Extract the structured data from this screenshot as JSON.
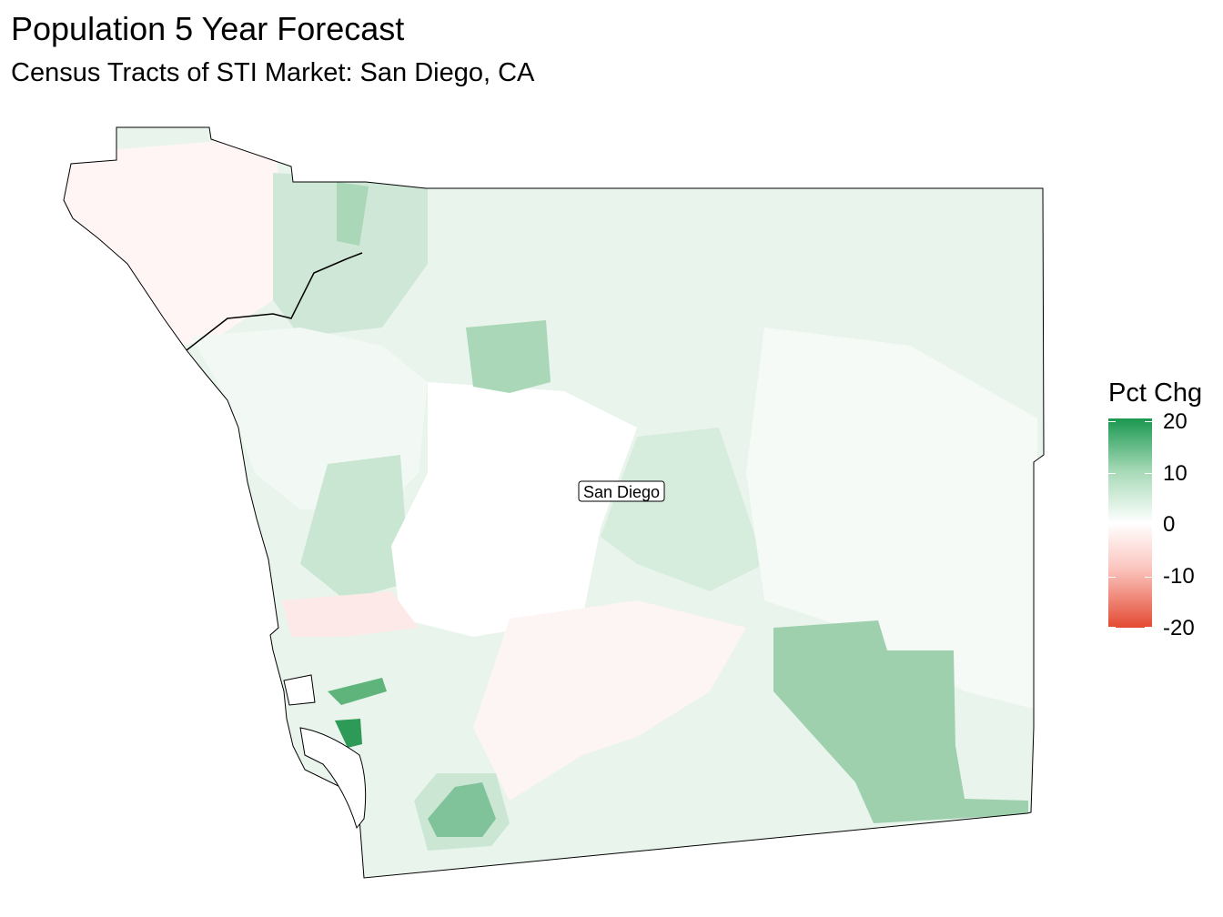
{
  "title": "Population 5 Year Forecast",
  "subtitle": "Census Tracts of STI Market: San Diego, CA",
  "map": {
    "city_label": "San Diego",
    "colors": {
      "max_growth": "#1a9850",
      "mid_growth": "#a6d9b6",
      "light_growth": "#e4f2e8",
      "neutral": "#ffffff",
      "decline": "#e34a33",
      "light_decline": "#fdecea"
    }
  },
  "legend": {
    "title": "Pct Chg",
    "ticks": [
      "20",
      "10",
      "0",
      "-10",
      "-20"
    ],
    "range": [
      -20,
      20
    ]
  }
}
